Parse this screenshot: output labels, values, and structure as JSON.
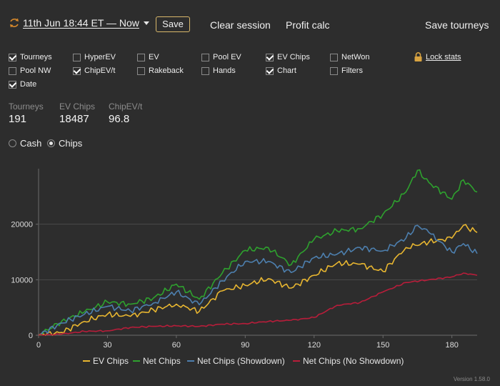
{
  "toolbar": {
    "session_label": "11th Jun 18:44 ET — Now",
    "save_label": "Save",
    "clear_label": "Clear session",
    "profit_label": "Profit calc",
    "save_tourneys_label": "Save tourneys"
  },
  "checkboxes": [
    {
      "label": "Tourneys",
      "checked": true
    },
    {
      "label": "HyperEV",
      "checked": false
    },
    {
      "label": "EV",
      "checked": false
    },
    {
      "label": "Pool EV",
      "checked": false
    },
    {
      "label": "EV Chips",
      "checked": true
    },
    {
      "label": "NetWon",
      "checked": false
    },
    {
      "label": "Pool NW",
      "checked": false
    },
    {
      "label": "ChipEV/t",
      "checked": true
    },
    {
      "label": "Rakeback",
      "checked": false
    },
    {
      "label": "Hands",
      "checked": false
    },
    {
      "label": "Chart",
      "checked": true
    },
    {
      "label": "Filters",
      "checked": false
    },
    {
      "label": "Date",
      "checked": true
    }
  ],
  "lock": {
    "label": "Lock stats",
    "icon": "lock-icon"
  },
  "stats": [
    {
      "label": "Tourneys",
      "value": "191"
    },
    {
      "label": "EV Chips",
      "value": "18487"
    },
    {
      "label": "ChipEV/t",
      "value": "96.8"
    }
  ],
  "mode": {
    "options": [
      {
        "label": "Cash",
        "selected": false
      },
      {
        "label": "Chips",
        "selected": true
      }
    ]
  },
  "chart_data": {
    "type": "line",
    "x_ticks": [
      "0",
      "30",
      "60",
      "90",
      "120",
      "150",
      "180"
    ],
    "y_ticks": [
      "0",
      "10000",
      "20000"
    ],
    "xlim": [
      0,
      191
    ],
    "ylim": [
      0,
      30000
    ],
    "grid": "horizontal",
    "legend_position": "bottom",
    "series": [
      {
        "name": "EV Chips",
        "color": "#e8b630",
        "points": [
          [
            0,
            0
          ],
          [
            10,
            500
          ],
          [
            20,
            2500
          ],
          [
            30,
            3800
          ],
          [
            40,
            3400
          ],
          [
            50,
            4600
          ],
          [
            60,
            5600
          ],
          [
            70,
            4300
          ],
          [
            80,
            8000
          ],
          [
            90,
            9000
          ],
          [
            100,
            10200
          ],
          [
            110,
            8500
          ],
          [
            120,
            10800
          ],
          [
            130,
            13000
          ],
          [
            140,
            12800
          ],
          [
            150,
            11500
          ],
          [
            160,
            15800
          ],
          [
            170,
            16800
          ],
          [
            180,
            17500
          ],
          [
            185,
            19800
          ],
          [
            191,
            18487
          ]
        ]
      },
      {
        "name": "Net Chips",
        "color": "#2ea12e",
        "points": [
          [
            0,
            0
          ],
          [
            10,
            2500
          ],
          [
            20,
            4200
          ],
          [
            30,
            6000
          ],
          [
            40,
            5600
          ],
          [
            50,
            6700
          ],
          [
            60,
            9200
          ],
          [
            70,
            6500
          ],
          [
            80,
            11200
          ],
          [
            90,
            15300
          ],
          [
            100,
            15800
          ],
          [
            110,
            12700
          ],
          [
            120,
            17300
          ],
          [
            130,
            18800
          ],
          [
            140,
            19200
          ],
          [
            150,
            21800
          ],
          [
            160,
            25800
          ],
          [
            165,
            29700
          ],
          [
            170,
            27500
          ],
          [
            180,
            24500
          ],
          [
            185,
            28000
          ],
          [
            191,
            25800
          ]
        ]
      },
      {
        "name": "Net Chips (Showdown)",
        "color": "#4d7fae",
        "points": [
          [
            0,
            0
          ],
          [
            10,
            2200
          ],
          [
            20,
            3800
          ],
          [
            30,
            5200
          ],
          [
            40,
            4400
          ],
          [
            50,
            5800
          ],
          [
            60,
            7800
          ],
          [
            70,
            5500
          ],
          [
            80,
            9800
          ],
          [
            90,
            13300
          ],
          [
            100,
            13300
          ],
          [
            110,
            11300
          ],
          [
            120,
            14000
          ],
          [
            130,
            14600
          ],
          [
            140,
            15800
          ],
          [
            150,
            15200
          ],
          [
            160,
            17500
          ],
          [
            165,
            19800
          ],
          [
            170,
            18500
          ],
          [
            180,
            15000
          ],
          [
            185,
            16500
          ],
          [
            191,
            14700
          ]
        ]
      },
      {
        "name": "Net Chips (No Showdown)",
        "color": "#b81d3a",
        "points": [
          [
            0,
            0
          ],
          [
            10,
            200
          ],
          [
            20,
            700
          ],
          [
            30,
            800
          ],
          [
            40,
            1400
          ],
          [
            50,
            1600
          ],
          [
            60,
            1700
          ],
          [
            70,
            1600
          ],
          [
            80,
            2000
          ],
          [
            90,
            2100
          ],
          [
            100,
            2500
          ],
          [
            110,
            2700
          ],
          [
            120,
            3200
          ],
          [
            130,
            5400
          ],
          [
            140,
            5900
          ],
          [
            150,
            7800
          ],
          [
            160,
            9500
          ],
          [
            170,
            10000
          ],
          [
            180,
            10500
          ],
          [
            185,
            11200
          ],
          [
            191,
            10800
          ]
        ]
      }
    ]
  },
  "version": "Version 1.58.0"
}
